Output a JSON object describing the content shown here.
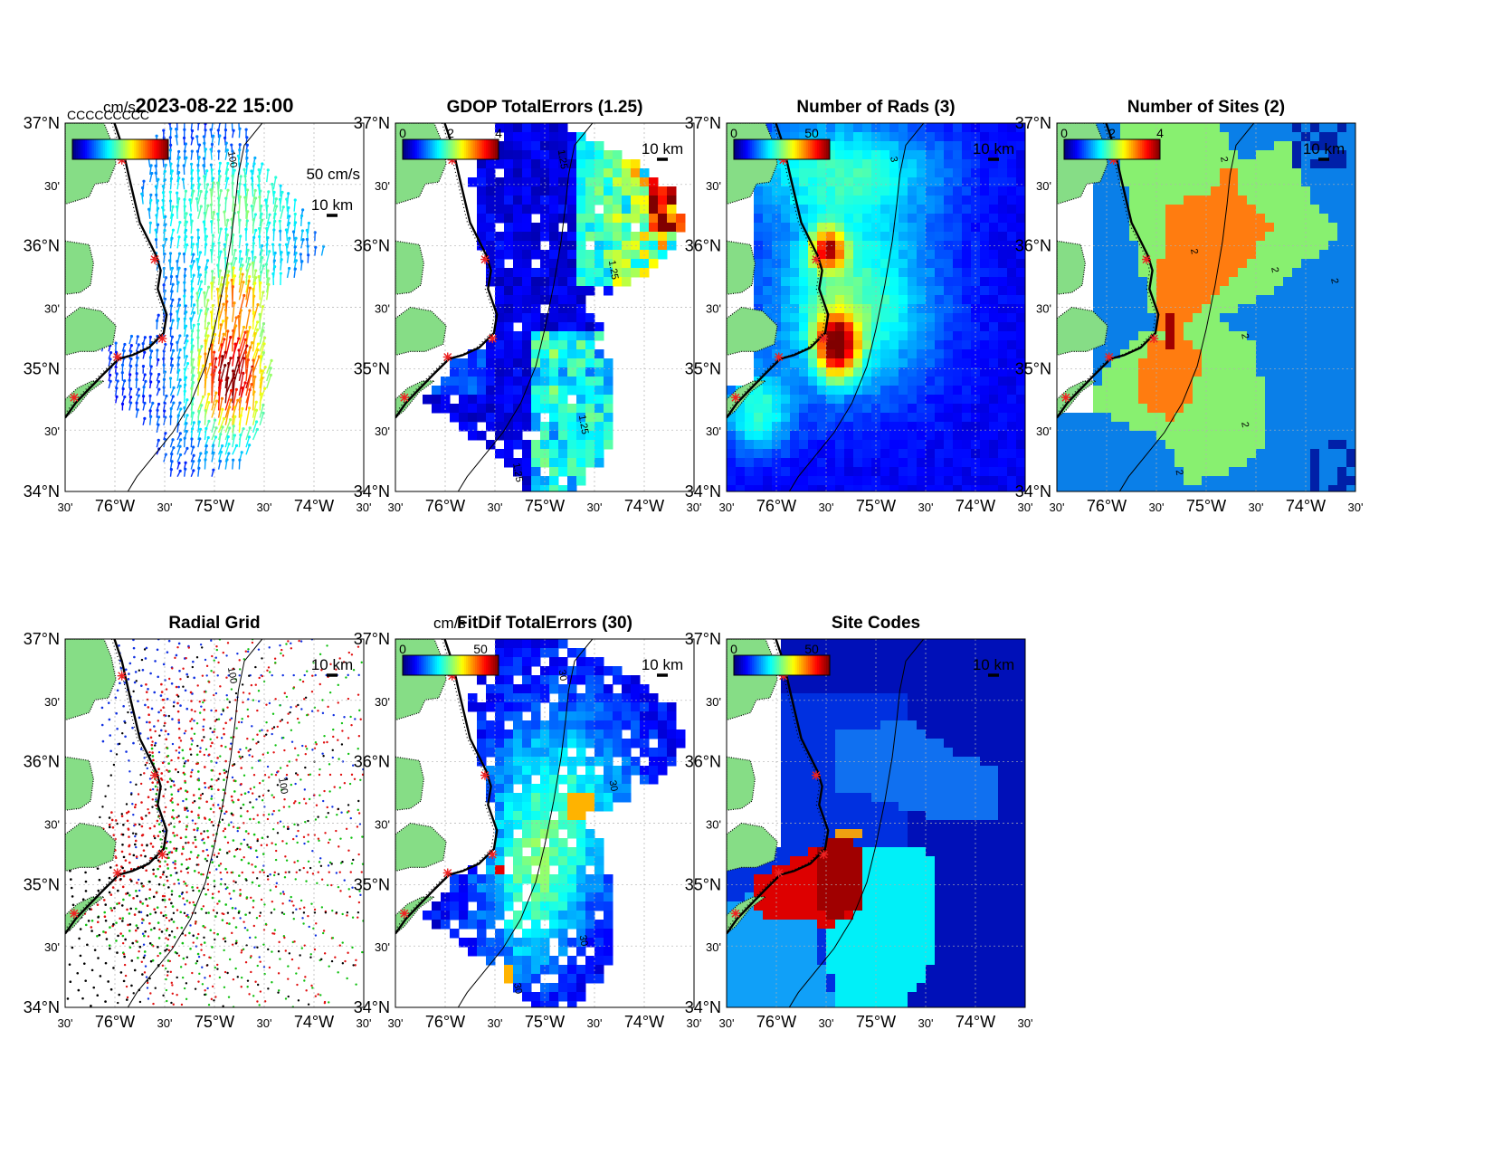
{
  "figure": {
    "colors": {
      "land": "#86dd86",
      "coast": "#000000",
      "site": "#ee2222",
      "grid": "#b0b0b0"
    },
    "panels": [
      {
        "id": "p1",
        "kind": "vectors",
        "title": "2023-08-22 15:00",
        "cb_unit": "cm/s",
        "cb_ticks": [],
        "overlay": "CCCCCCCCC",
        "scale_label": "50 cm/s",
        "dist_label": "10 km",
        "contour_labels": [
          "100"
        ]
      },
      {
        "id": "p2",
        "kind": "gdop",
        "title": "GDOP TotalErrors (1.25)",
        "cb_unit": "",
        "cb_ticks": [
          "0",
          "2",
          "4"
        ],
        "dist_label": "10 km",
        "contour_labels": [
          "1.25",
          "1.25",
          "1.25",
          "1.25"
        ]
      },
      {
        "id": "p3",
        "kind": "rads",
        "title": "Number of Rads (3)",
        "cb_unit": "",
        "cb_ticks": [
          "0",
          "50"
        ],
        "dist_label": "10 km",
        "contour_labels": [
          "3"
        ]
      },
      {
        "id": "p4",
        "kind": "sites",
        "title": "Number of Sites (2)",
        "cb_unit": "",
        "cb_ticks": [
          "0",
          "2",
          "4"
        ],
        "dist_label": "10 km",
        "contour_labels": [
          "2",
          "2",
          "2",
          "2",
          "2",
          "2",
          "2"
        ]
      },
      {
        "id": "p5",
        "kind": "radial",
        "title": "Radial Grid",
        "cb_unit": "",
        "cb_ticks": [],
        "dist_label": "10 km",
        "contour_labels": [
          "100",
          "100"
        ]
      },
      {
        "id": "p6",
        "kind": "fitdif",
        "title": "FitDif TotalErrors (30)",
        "cb_unit": "cm/s",
        "cb_ticks": [
          "0",
          "50"
        ],
        "dist_label": "10 km",
        "contour_labels": [
          "30",
          "30",
          "30",
          "30"
        ]
      },
      {
        "id": "p7",
        "kind": "codes",
        "title": "Site Codes",
        "cb_unit": "",
        "cb_ticks": [
          "0",
          "50"
        ],
        "dist_label": "10 km",
        "contour_labels": []
      }
    ],
    "axes": {
      "lat_labels": [
        "37°N",
        "30'",
        "36°N",
        "30'",
        "35°N",
        "30'",
        "34°N"
      ],
      "lat_small": [
        false,
        true,
        false,
        true,
        false,
        true,
        false
      ],
      "lon_labels": [
        "30'",
        "76°W",
        "30'",
        "75°W",
        "30'",
        "74°W",
        "30'"
      ],
      "lon_small": [
        true,
        false,
        true,
        false,
        true,
        false,
        true
      ]
    }
  }
}
